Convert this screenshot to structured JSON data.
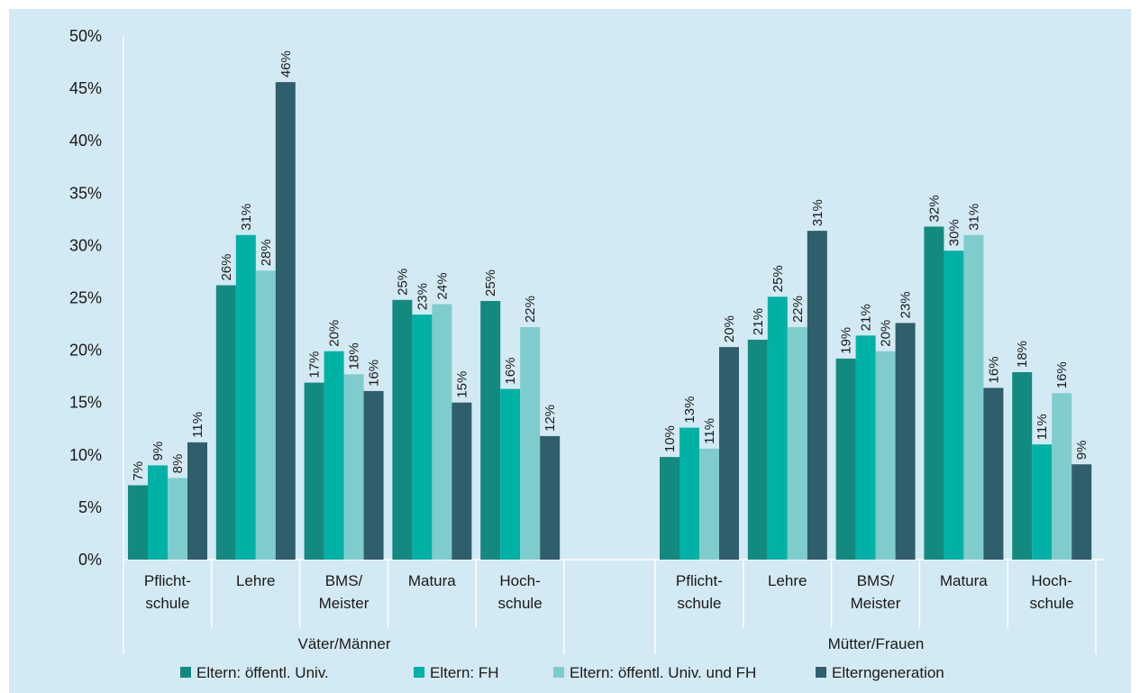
{
  "chart_data": {
    "type": "bar",
    "title": "",
    "xlabel": "",
    "ylabel": "",
    "ylim": [
      0,
      50
    ],
    "y_ticks": [
      "0%",
      "5%",
      "10%",
      "15%",
      "20%",
      "25%",
      "30%",
      "35%",
      "40%",
      "45%",
      "50%"
    ],
    "grid": false,
    "legend_position": "bottom",
    "groups": [
      {
        "name": "Väter/Männer",
        "categories": [
          {
            "lines": [
              "Pflicht-",
              "schule"
            ]
          },
          {
            "lines": [
              "Lehre"
            ]
          },
          {
            "lines": [
              "BMS/",
              "Meister"
            ]
          },
          {
            "lines": [
              "Matura"
            ]
          },
          {
            "lines": [
              "Hoch-",
              "schule"
            ]
          }
        ]
      },
      {
        "name": "Mütter/Frauen",
        "categories": [
          {
            "lines": [
              "Pflicht-",
              "schule"
            ]
          },
          {
            "lines": [
              "Lehre"
            ]
          },
          {
            "lines": [
              "BMS/",
              "Meister"
            ]
          },
          {
            "lines": [
              "Matura"
            ]
          },
          {
            "lines": [
              "Hoch-",
              "schule"
            ]
          }
        ]
      }
    ],
    "series": [
      {
        "name": "Eltern: öffentl. Univ.",
        "color": "#138a80",
        "values": [
          7.1,
          26.2,
          16.9,
          24.8,
          24.7,
          9.8,
          21.0,
          19.2,
          31.8,
          17.9
        ],
        "labels": [
          "7%",
          "26%",
          "17%",
          "25%",
          "25%",
          "10%",
          "21%",
          "19%",
          "32%",
          "18%"
        ]
      },
      {
        "name": "Eltern: FH",
        "color": "#00b1a6",
        "values": [
          9.0,
          31.0,
          19.9,
          23.4,
          16.3,
          12.6,
          25.1,
          21.4,
          29.5,
          11.0
        ],
        "labels": [
          "9%",
          "31%",
          "20%",
          "23%",
          "16%",
          "13%",
          "25%",
          "21%",
          "30%",
          "11%"
        ]
      },
      {
        "name": "Eltern: öffentl. Univ. und FH",
        "color": "#7ecdcc",
        "values": [
          7.8,
          27.6,
          17.7,
          24.4,
          22.2,
          10.6,
          22.2,
          19.9,
          31.0,
          15.9
        ],
        "labels": [
          "8%",
          "28%",
          "18%",
          "24%",
          "22%",
          "11%",
          "22%",
          "20%",
          "31%",
          "16%"
        ]
      },
      {
        "name": "Elterngeneration",
        "color": "#2f5e6c",
        "values": [
          11.2,
          45.6,
          16.1,
          15.0,
          11.8,
          20.3,
          31.4,
          22.6,
          16.4,
          9.1
        ],
        "labels": [
          "11%",
          "46%",
          "16%",
          "15%",
          "12%",
          "20%",
          "31%",
          "23%",
          "16%",
          "9%"
        ]
      }
    ]
  }
}
